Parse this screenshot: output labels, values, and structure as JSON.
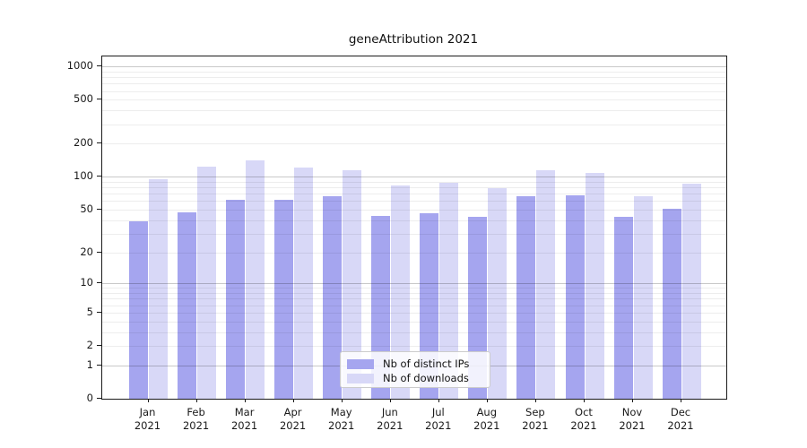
{
  "chart_data": {
    "type": "bar",
    "title": "geneAttribution 2021",
    "year": "2021",
    "categories": [
      "Jan",
      "Feb",
      "Mar",
      "Apr",
      "May",
      "Jun",
      "Jul",
      "Aug",
      "Sep",
      "Oct",
      "Nov",
      "Dec"
    ],
    "series": [
      {
        "name": "Nb of distinct IPs",
        "color": "#a5a5ef",
        "values": [
          39,
          47,
          61,
          62,
          66,
          44,
          46,
          43,
          67,
          68,
          43,
          51
        ]
      },
      {
        "name": "Nb of downloads",
        "color": "#d8d8f7",
        "values": [
          95,
          123,
          140,
          121,
          115,
          84,
          88,
          78,
          114,
          109,
          66,
          86
        ]
      }
    ],
    "xlabel": "",
    "ylabel": "",
    "y_scale": "log10(value+1), 0 at baseline",
    "y_ticks": [
      0,
      1,
      2,
      5,
      10,
      20,
      50,
      100,
      200,
      500,
      1000
    ],
    "ylim": [
      0,
      1230
    ],
    "grid": "horizontal log gridlines, major at decades, minor at 2-9 per decade",
    "legend_position": "lower center"
  }
}
